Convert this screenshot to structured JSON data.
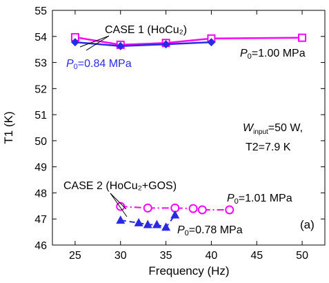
{
  "chart_data": {
    "type": "line",
    "title": "",
    "xlabel": "Frequency (Hz)",
    "ylabel": "T1 (K)",
    "xlim": [
      22.5,
      52.5
    ],
    "ylim": [
      46,
      55
    ],
    "xticks": [
      25,
      30,
      35,
      40,
      45,
      50
    ],
    "yticks": [
      46,
      47,
      48,
      49,
      50,
      51,
      52,
      53,
      54,
      55
    ],
    "grid": false,
    "colors": {
      "magenta": "#ff00ff",
      "blue": "#2a2ae6",
      "black": "#000000"
    },
    "series": [
      {
        "name": "CASE 1 (HoCu2) P0=1.00 MPa",
        "color": "#ff00ff",
        "marker": "open-square",
        "line": "solid",
        "x": [
          25,
          30,
          35,
          40,
          50
        ],
        "y": [
          53.97,
          53.68,
          53.75,
          53.92,
          53.95
        ]
      },
      {
        "name": "CASE 1 (HoCu2) P0=0.84 MPa",
        "color": "#2a2ae6",
        "marker": "filled-diamond",
        "line": "solid",
        "x": [
          25,
          30,
          35,
          40
        ],
        "y": [
          53.78,
          53.63,
          53.7,
          53.78
        ]
      },
      {
        "name": "CASE 2 (HoCu2+GOS) P0=1.01 MPa",
        "color": "#ff00ff",
        "marker": "open-circle",
        "line": "dashdot",
        "x": [
          30,
          33,
          36,
          38,
          39,
          42
        ],
        "y": [
          47.48,
          47.42,
          47.42,
          47.4,
          47.35,
          47.35
        ]
      },
      {
        "name": "CASE 2 (HoCu2+GOS) P0=0.78 MPa",
        "color": "#2a2ae6",
        "marker": "filled-triangle",
        "line": "dash",
        "x": [
          30,
          32,
          33,
          34,
          35,
          36
        ],
        "y": [
          46.95,
          46.85,
          46.78,
          46.78,
          46.68,
          47.15
        ]
      }
    ],
    "annotations": {
      "case1": "CASE 1 (HoCu₂)",
      "case2": "CASE 2 (HoCu₂+GOS)",
      "p100_main": "P",
      "p100_sub": "0",
      "p100_val": "=1.00 MPa",
      "p084_main": "P",
      "p084_sub": "0",
      "p084_val": "=0.84 MPa",
      "p101_main": "P",
      "p101_sub": "0",
      "p101_val": "=1.01 MPa",
      "p078_main": "P",
      "p078_sub": "0",
      "p078_val": "=0.78 MPa",
      "win_main": "W",
      "win_sub": "input",
      "win_val": "=50 W,",
      "t2": "T2=7.9 K",
      "panel": "(a)"
    }
  }
}
